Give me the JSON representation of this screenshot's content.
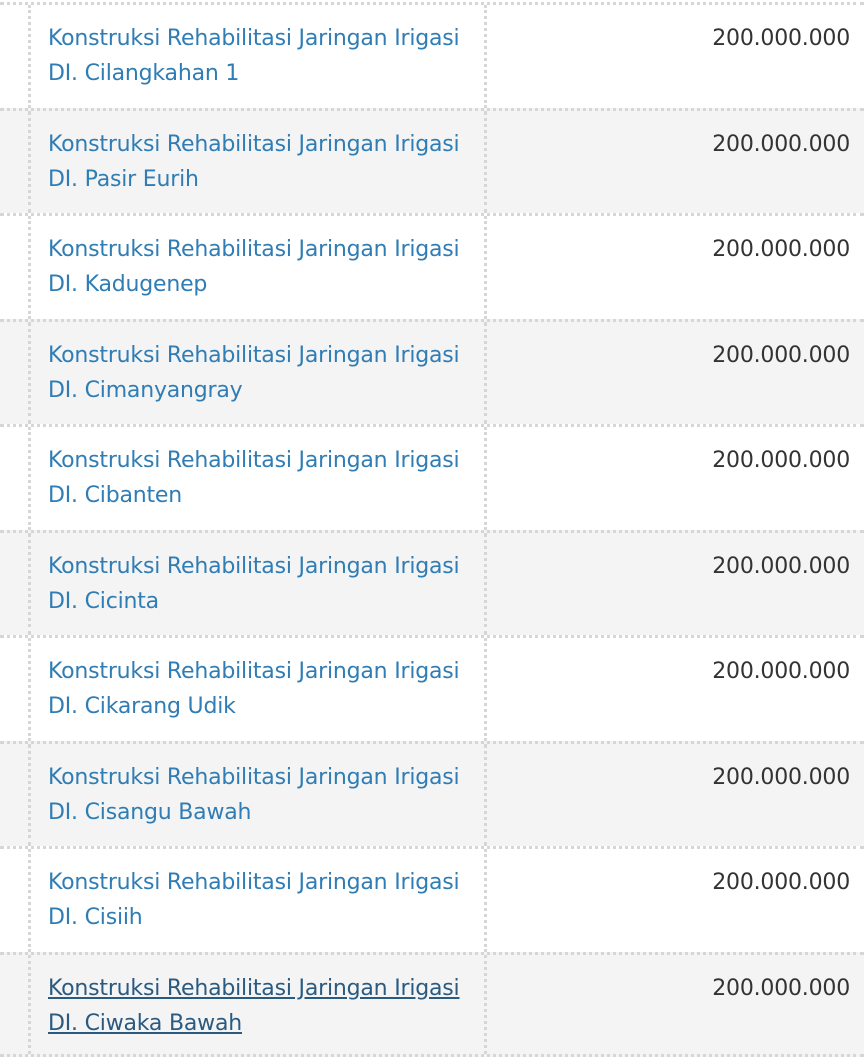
{
  "table": {
    "rows": [
      {
        "line1": "Konstruksi Rehabilitasi Jaringan Irigasi",
        "line2": "DI. Cilangkahan 1",
        "amount": "200.000.000"
      },
      {
        "line1": "Konstruksi Rehabilitasi Jaringan Irigasi",
        "line2": "DI. Pasir Eurih",
        "amount": "200.000.000"
      },
      {
        "line1": "Konstruksi Rehabilitasi Jaringan Irigasi",
        "line2": "DI. Kadugenep",
        "amount": "200.000.000"
      },
      {
        "line1": "Konstruksi Rehabilitasi Jaringan Irigasi",
        "line2": "DI. Cimanyangray",
        "amount": "200.000.000"
      },
      {
        "line1": "Konstruksi Rehabilitasi Jaringan Irigasi",
        "line2": "DI. Cibanten",
        "amount": "200.000.000"
      },
      {
        "line1": "Konstruksi Rehabilitasi Jaringan Irigasi",
        "line2": "DI. Cicinta",
        "amount": "200.000.000"
      },
      {
        "line1": "Konstruksi Rehabilitasi Jaringan Irigasi",
        "line2": "DI. Cikarang Udik",
        "amount": "200.000.000"
      },
      {
        "line1": "Konstruksi Rehabilitasi Jaringan Irigasi",
        "line2": "DI. Cisangu Bawah",
        "amount": "200.000.000"
      },
      {
        "line1": "Konstruksi Rehabilitasi Jaringan Irigasi",
        "line2": "DI. Cisiih",
        "amount": "200.000.000"
      },
      {
        "line1": "Konstruksi Rehabilitasi Jaringan Irigasi",
        "line2": "DI. Ciwaka Bawah",
        "amount": "200.000.000",
        "hovered": true
      }
    ]
  },
  "colors": {
    "link": "#2f7db4",
    "link_hover": "#2a5a80",
    "row_alt": "#f4f4f4",
    "text": "#333333"
  }
}
